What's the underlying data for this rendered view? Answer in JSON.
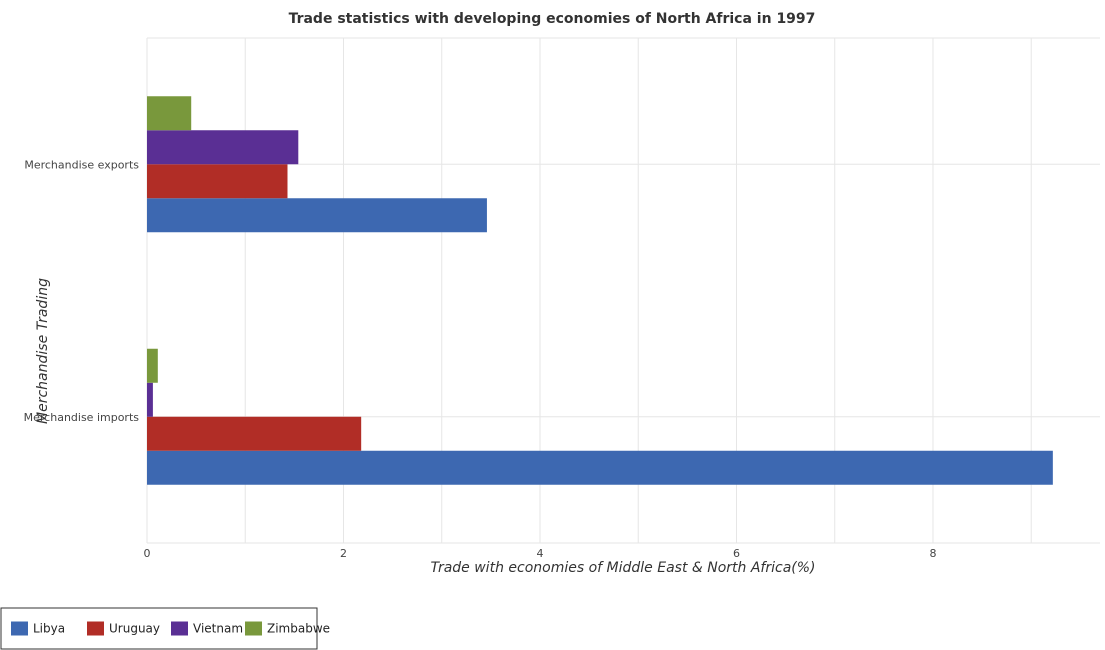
{
  "chart_data": {
    "type": "bar",
    "orientation": "horizontal",
    "title": "Trade statistics with developing economies of North Africa in 1997",
    "xlabel": "Trade with economies of Middle East & North Africa(%)",
    "ylabel": "Merchandise Trading",
    "categories": [
      "Merchandise exports",
      "Merchandise imports"
    ],
    "series": [
      {
        "name": "Libya",
        "color": "#3d68b1",
        "values": [
          3.46,
          9.22
        ]
      },
      {
        "name": "Uruguay",
        "color": "#b12d26",
        "values": [
          1.43,
          2.18
        ]
      },
      {
        "name": "Vietnam",
        "color": "#5a2f94",
        "values": [
          1.54,
          0.06
        ]
      },
      {
        "name": "Zimbabwe",
        "color": "#79983c",
        "values": [
          0.45,
          0.11
        ]
      }
    ],
    "xlim": [
      0,
      9.7
    ],
    "xticks": [
      0,
      2,
      4,
      6,
      8
    ],
    "xtick_labels": [
      "0",
      "2",
      "4",
      "6",
      "8"
    ],
    "grid": true,
    "legend_position": "bottom-left"
  }
}
